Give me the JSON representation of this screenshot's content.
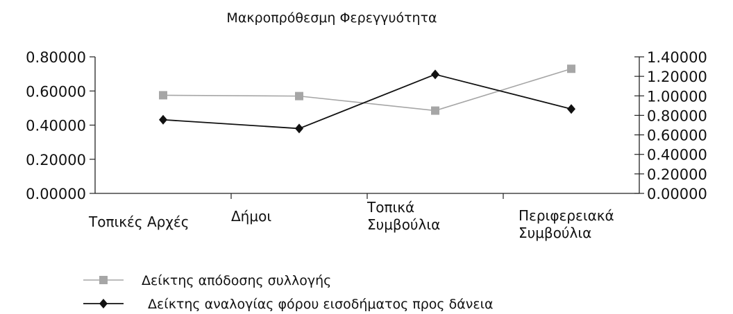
{
  "chart_data": {
    "type": "line",
    "title": "Μακροπρόθεσμη Φερεγγυότητα",
    "categories": [
      [
        "Τοπικές Αρχές"
      ],
      [
        "Δήμοι"
      ],
      [
        "Τοπικά",
        "Συμβούλια"
      ],
      [
        "Περιφερειακά",
        "Συμβούλια"
      ]
    ],
    "y_left": {
      "ticks": [
        "0.00000",
        "0.20000",
        "0.40000",
        "0.60000",
        "0.80000"
      ],
      "ylim": [
        0,
        0.8
      ]
    },
    "y_right": {
      "ticks": [
        "0.00000",
        "0.20000",
        "0.40000",
        "0.60000",
        "0.80000",
        "1.00000",
        "1.20000",
        "1.40000"
      ],
      "ylim": [
        0,
        1.4
      ]
    },
    "series": [
      {
        "name": "Δείκτης απόδοσης συλλογής",
        "axis": "left",
        "color": "#a6a6a6",
        "marker": "square",
        "values": [
          0.575,
          0.57,
          0.485,
          0.73
        ]
      },
      {
        "name": "Δείκτης αναλογίας φόρου εισοδήματος προς δάνεια",
        "axis": "right",
        "color": "#111111",
        "marker": "diamond",
        "values": [
          0.755,
          0.665,
          1.22,
          0.865
        ]
      }
    ],
    "grid": false,
    "legend_position": "bottom"
  }
}
